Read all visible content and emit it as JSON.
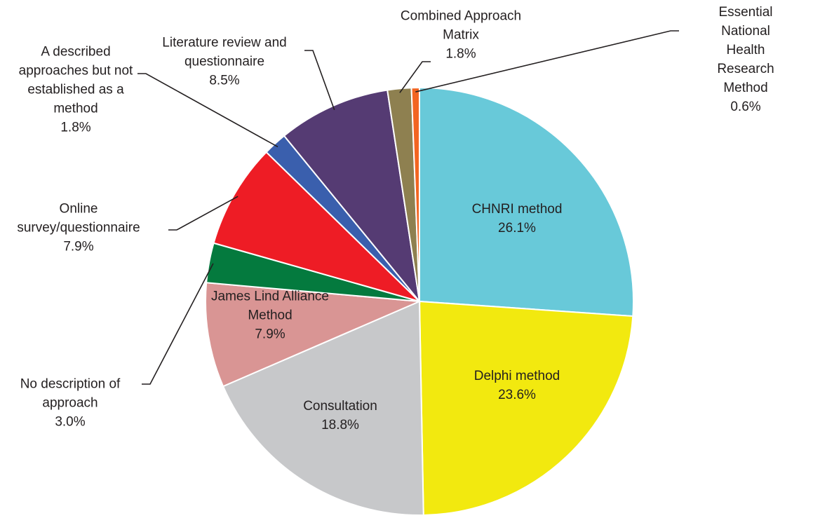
{
  "chart_data": {
    "type": "pie",
    "categories": [
      "CHNRI method",
      "Delphi method",
      "Consultation",
      "James Lind Alliance\nMethod",
      "No description of\napproach",
      "Online\nsurvey/questionnaire",
      "A described\napproaches but not\nestablished as a\nmethod",
      "Literature review and\nquestionnaire",
      "Combined Approach\nMatrix",
      "Essential National\nHealth Research\nMethod"
    ],
    "values": [
      26.1,
      23.6,
      18.8,
      7.9,
      3.0,
      7.9,
      1.8,
      8.5,
      1.8,
      0.6
    ],
    "value_labels": [
      "26.1%",
      "23.6%",
      "18.8%",
      "7.9%",
      "3.0%",
      "7.9%",
      "1.8%",
      "8.5%",
      "1.8%",
      "0.6%"
    ],
    "colors": [
      "#68c9d9",
      "#f2e90f",
      "#c7c8ca",
      "#d99594",
      "#047a3e",
      "#ee1c25",
      "#3a5fad",
      "#553b73",
      "#8e8050",
      "#f26522"
    ]
  }
}
